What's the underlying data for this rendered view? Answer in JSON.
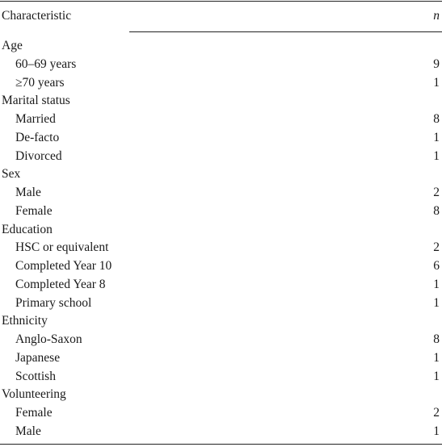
{
  "header": {
    "characteristic": "Characteristic",
    "n": "n"
  },
  "rows": [
    {
      "label": "Age",
      "n": ""
    },
    {
      "label": "60–69 years",
      "n": "9"
    },
    {
      "label": "≥70 years",
      "n": "1"
    },
    {
      "label": "Marital status",
      "n": ""
    },
    {
      "label": "Married",
      "n": "8"
    },
    {
      "label": "De-facto",
      "n": "1"
    },
    {
      "label": "Divorced",
      "n": "1"
    },
    {
      "label": "Sex",
      "n": ""
    },
    {
      "label": "Male",
      "n": "2"
    },
    {
      "label": "Female",
      "n": "8"
    },
    {
      "label": "Education",
      "n": ""
    },
    {
      "label": "HSC or equivalent",
      "n": "2"
    },
    {
      "label": "Completed Year 10",
      "n": "6"
    },
    {
      "label": "Completed Year 8",
      "n": "1"
    },
    {
      "label": "Primary school",
      "n": "1"
    },
    {
      "label": "Ethnicity",
      "n": ""
    },
    {
      "label": "Anglo-Saxon",
      "n": "8"
    },
    {
      "label": "Japanese",
      "n": "1"
    },
    {
      "label": "Scottish",
      "n": "1"
    },
    {
      "label": "Volunteering",
      "n": ""
    },
    {
      "label": "Female",
      "n": "2"
    },
    {
      "label": "Male",
      "n": "1"
    }
  ]
}
